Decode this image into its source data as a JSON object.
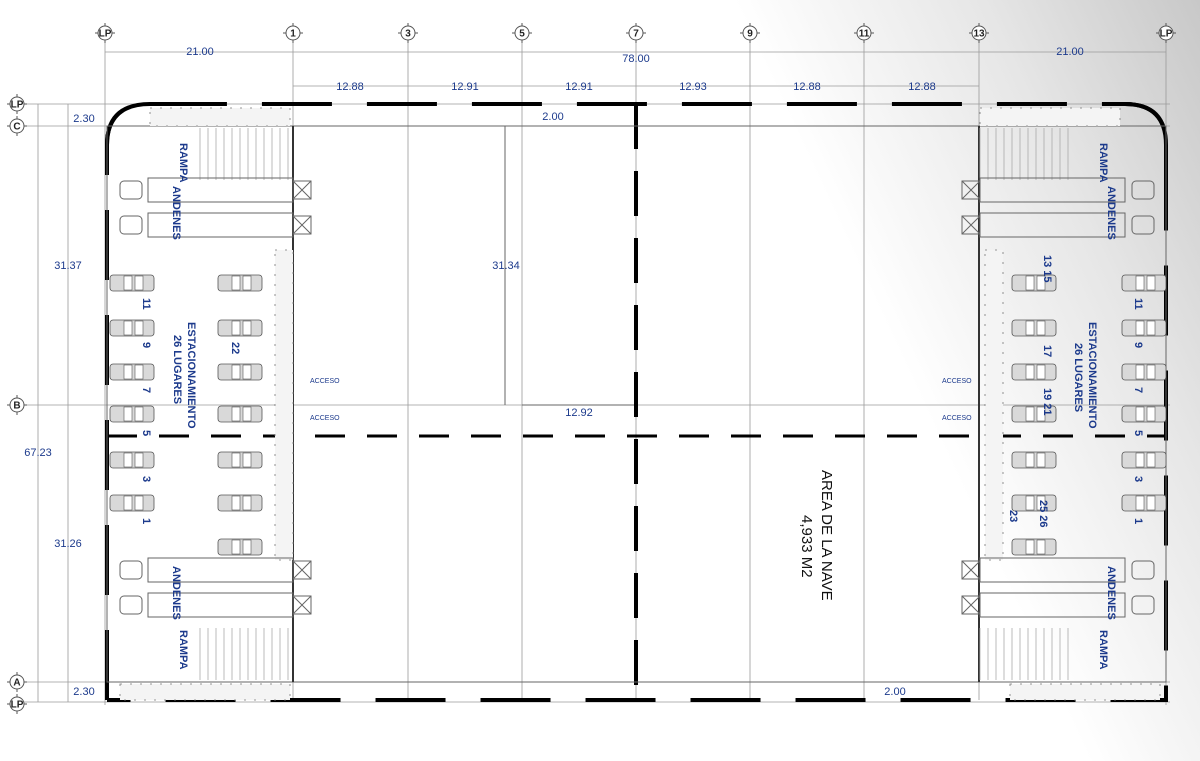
{
  "grid": {
    "columns": [
      "LP",
      "1",
      "3",
      "5",
      "7",
      "9",
      "11",
      "13",
      "LP"
    ],
    "rows": [
      "LP",
      "C",
      "B",
      "A",
      "LP"
    ]
  },
  "dimensions": {
    "overall_width": "78.00",
    "left_bay": "21.00",
    "right_bay": "21.00",
    "bays": [
      "12.88",
      "12.91",
      "12.91",
      "12.93",
      "12.88",
      "12.88"
    ],
    "overall_depth": "67.23",
    "upper_depth": "31.37",
    "lower_depth": "31.26",
    "top_strip": "2.30",
    "bottom_strip": "2.30",
    "top_offset": "2.00",
    "bottom_offset": "2.00",
    "inner_depth": "31.34",
    "inner_width": "12.92"
  },
  "labels": {
    "ramp": "RAMPA",
    "docks": "ANDENES",
    "parking": "ESTACIONAMIENTO",
    "parking_count": "26 LUGARES",
    "access": "ACCESO",
    "area_title": "AREA DE LA NAVE",
    "area_value": "4,933 M2"
  },
  "parking_numbers": {
    "left_outer": [
      "11",
      "9",
      "7",
      "5",
      "3",
      "1"
    ],
    "left_inner": [
      "22"
    ],
    "right_inner": [
      "13 15",
      "17",
      "19 21",
      "23",
      "25 26"
    ],
    "right_outer": [
      "11",
      "9",
      "7",
      "5",
      "3",
      "1"
    ]
  },
  "colors": {
    "dimension_text": "#1c3a8c",
    "walls": "#000000",
    "annotation": "#e07a10"
  }
}
